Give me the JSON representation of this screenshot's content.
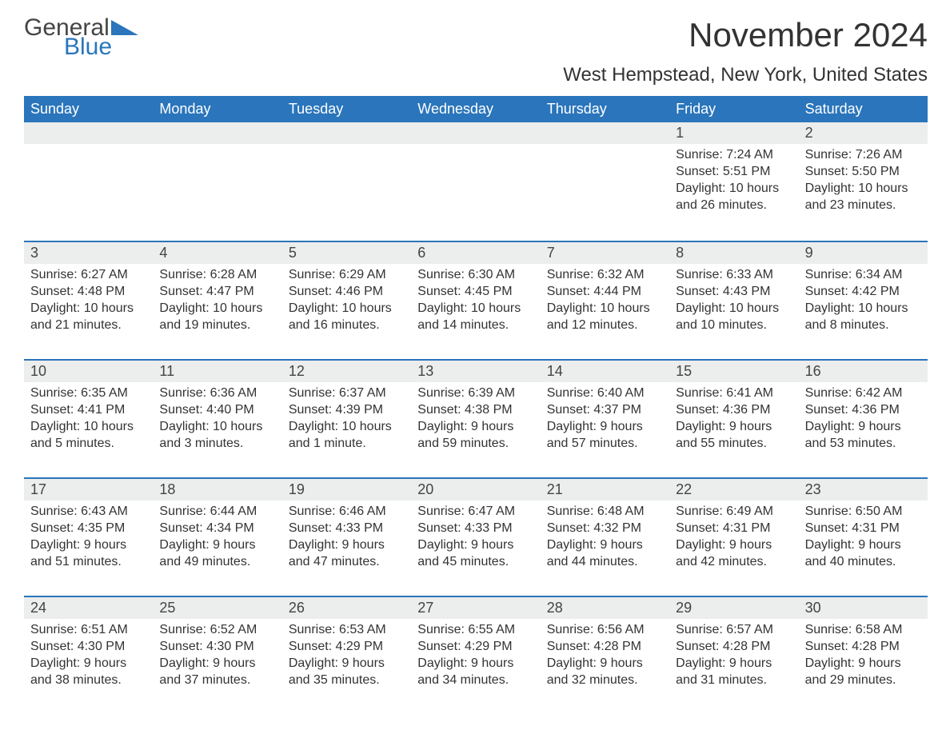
{
  "logo": {
    "text1": "General",
    "text2": "Blue",
    "accent_color": "#2a75bb"
  },
  "title": "November 2024",
  "subtitle": "West Hempstead, New York, United States",
  "colors": {
    "header_bg": "#2a75bb",
    "header_text": "#ffffff",
    "daynum_bg": "#eceded",
    "row_border": "#2a75bb",
    "text": "#333333"
  },
  "day_headers": [
    "Sunday",
    "Monday",
    "Tuesday",
    "Wednesday",
    "Thursday",
    "Friday",
    "Saturday"
  ],
  "leading_blanks": 5,
  "days": [
    {
      "n": "1",
      "sunrise": "Sunrise: 7:24 AM",
      "sunset": "Sunset: 5:51 PM",
      "d1": "Daylight: 10 hours",
      "d2": "and 26 minutes."
    },
    {
      "n": "2",
      "sunrise": "Sunrise: 7:26 AM",
      "sunset": "Sunset: 5:50 PM",
      "d1": "Daylight: 10 hours",
      "d2": "and 23 minutes."
    },
    {
      "n": "3",
      "sunrise": "Sunrise: 6:27 AM",
      "sunset": "Sunset: 4:48 PM",
      "d1": "Daylight: 10 hours",
      "d2": "and 21 minutes."
    },
    {
      "n": "4",
      "sunrise": "Sunrise: 6:28 AM",
      "sunset": "Sunset: 4:47 PM",
      "d1": "Daylight: 10 hours",
      "d2": "and 19 minutes."
    },
    {
      "n": "5",
      "sunrise": "Sunrise: 6:29 AM",
      "sunset": "Sunset: 4:46 PM",
      "d1": "Daylight: 10 hours",
      "d2": "and 16 minutes."
    },
    {
      "n": "6",
      "sunrise": "Sunrise: 6:30 AM",
      "sunset": "Sunset: 4:45 PM",
      "d1": "Daylight: 10 hours",
      "d2": "and 14 minutes."
    },
    {
      "n": "7",
      "sunrise": "Sunrise: 6:32 AM",
      "sunset": "Sunset: 4:44 PM",
      "d1": "Daylight: 10 hours",
      "d2": "and 12 minutes."
    },
    {
      "n": "8",
      "sunrise": "Sunrise: 6:33 AM",
      "sunset": "Sunset: 4:43 PM",
      "d1": "Daylight: 10 hours",
      "d2": "and 10 minutes."
    },
    {
      "n": "9",
      "sunrise": "Sunrise: 6:34 AM",
      "sunset": "Sunset: 4:42 PM",
      "d1": "Daylight: 10 hours",
      "d2": "and 8 minutes."
    },
    {
      "n": "10",
      "sunrise": "Sunrise: 6:35 AM",
      "sunset": "Sunset: 4:41 PM",
      "d1": "Daylight: 10 hours",
      "d2": "and 5 minutes."
    },
    {
      "n": "11",
      "sunrise": "Sunrise: 6:36 AM",
      "sunset": "Sunset: 4:40 PM",
      "d1": "Daylight: 10 hours",
      "d2": "and 3 minutes."
    },
    {
      "n": "12",
      "sunrise": "Sunrise: 6:37 AM",
      "sunset": "Sunset: 4:39 PM",
      "d1": "Daylight: 10 hours",
      "d2": "and 1 minute."
    },
    {
      "n": "13",
      "sunrise": "Sunrise: 6:39 AM",
      "sunset": "Sunset: 4:38 PM",
      "d1": "Daylight: 9 hours",
      "d2": "and 59 minutes."
    },
    {
      "n": "14",
      "sunrise": "Sunrise: 6:40 AM",
      "sunset": "Sunset: 4:37 PM",
      "d1": "Daylight: 9 hours",
      "d2": "and 57 minutes."
    },
    {
      "n": "15",
      "sunrise": "Sunrise: 6:41 AM",
      "sunset": "Sunset: 4:36 PM",
      "d1": "Daylight: 9 hours",
      "d2": "and 55 minutes."
    },
    {
      "n": "16",
      "sunrise": "Sunrise: 6:42 AM",
      "sunset": "Sunset: 4:36 PM",
      "d1": "Daylight: 9 hours",
      "d2": "and 53 minutes."
    },
    {
      "n": "17",
      "sunrise": "Sunrise: 6:43 AM",
      "sunset": "Sunset: 4:35 PM",
      "d1": "Daylight: 9 hours",
      "d2": "and 51 minutes."
    },
    {
      "n": "18",
      "sunrise": "Sunrise: 6:44 AM",
      "sunset": "Sunset: 4:34 PM",
      "d1": "Daylight: 9 hours",
      "d2": "and 49 minutes."
    },
    {
      "n": "19",
      "sunrise": "Sunrise: 6:46 AM",
      "sunset": "Sunset: 4:33 PM",
      "d1": "Daylight: 9 hours",
      "d2": "and 47 minutes."
    },
    {
      "n": "20",
      "sunrise": "Sunrise: 6:47 AM",
      "sunset": "Sunset: 4:33 PM",
      "d1": "Daylight: 9 hours",
      "d2": "and 45 minutes."
    },
    {
      "n": "21",
      "sunrise": "Sunrise: 6:48 AM",
      "sunset": "Sunset: 4:32 PM",
      "d1": "Daylight: 9 hours",
      "d2": "and 44 minutes."
    },
    {
      "n": "22",
      "sunrise": "Sunrise: 6:49 AM",
      "sunset": "Sunset: 4:31 PM",
      "d1": "Daylight: 9 hours",
      "d2": "and 42 minutes."
    },
    {
      "n": "23",
      "sunrise": "Sunrise: 6:50 AM",
      "sunset": "Sunset: 4:31 PM",
      "d1": "Daylight: 9 hours",
      "d2": "and 40 minutes."
    },
    {
      "n": "24",
      "sunrise": "Sunrise: 6:51 AM",
      "sunset": "Sunset: 4:30 PM",
      "d1": "Daylight: 9 hours",
      "d2": "and 38 minutes."
    },
    {
      "n": "25",
      "sunrise": "Sunrise: 6:52 AM",
      "sunset": "Sunset: 4:30 PM",
      "d1": "Daylight: 9 hours",
      "d2": "and 37 minutes."
    },
    {
      "n": "26",
      "sunrise": "Sunrise: 6:53 AM",
      "sunset": "Sunset: 4:29 PM",
      "d1": "Daylight: 9 hours",
      "d2": "and 35 minutes."
    },
    {
      "n": "27",
      "sunrise": "Sunrise: 6:55 AM",
      "sunset": "Sunset: 4:29 PM",
      "d1": "Daylight: 9 hours",
      "d2": "and 34 minutes."
    },
    {
      "n": "28",
      "sunrise": "Sunrise: 6:56 AM",
      "sunset": "Sunset: 4:28 PM",
      "d1": "Daylight: 9 hours",
      "d2": "and 32 minutes."
    },
    {
      "n": "29",
      "sunrise": "Sunrise: 6:57 AM",
      "sunset": "Sunset: 4:28 PM",
      "d1": "Daylight: 9 hours",
      "d2": "and 31 minutes."
    },
    {
      "n": "30",
      "sunrise": "Sunrise: 6:58 AM",
      "sunset": "Sunset: 4:28 PM",
      "d1": "Daylight: 9 hours",
      "d2": "and 29 minutes."
    }
  ]
}
